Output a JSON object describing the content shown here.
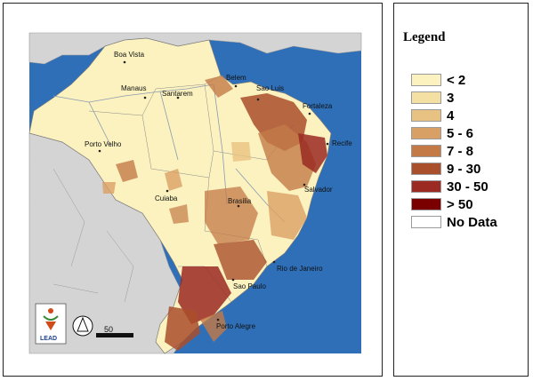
{
  "legend": {
    "title": "Legend",
    "items": [
      {
        "label": "< 2",
        "color": "#fcf2bf"
      },
      {
        "label": "3",
        "color": "#f5e0a3"
      },
      {
        "label": "4",
        "color": "#e8c282"
      },
      {
        "label": "5 - 6",
        "color": "#d9a065"
      },
      {
        "label": "7 - 8",
        "color": "#c37a47"
      },
      {
        "label": "9 - 30",
        "color": "#a94f2c"
      },
      {
        "label": "30 - 50",
        "color": "#9a2a22"
      },
      {
        "label": "> 50",
        "color": "#7a0000"
      },
      {
        "label": "No Data",
        "color": "#ffffff"
      }
    ]
  },
  "cities": {
    "boa_vista": "Boa Vista",
    "manaus": "Manaus",
    "santarem": "Santarem",
    "belem": "Belem",
    "sao_luis": "Sao Luis",
    "fortaleza": "Fortaleza",
    "recife": "Recife",
    "porto_velho": "Porto Velho",
    "salvador": "Salvador",
    "cuiaba": "Cuiaba",
    "brasilia": "Brasilia",
    "rio_de_janeiro": "Rio de Janeiro",
    "sao_paulo": "Sao Paulo",
    "porto_alegre": "Porto Alegre"
  },
  "logo": {
    "text": "LEAD"
  },
  "scale_bar": {
    "label": "50"
  },
  "colors": {
    "ocean": "#2e6fb8",
    "land_other": "#d4d4d4",
    "brazil_base": "#fcf2bf",
    "river": "#8a9ab0"
  }
}
